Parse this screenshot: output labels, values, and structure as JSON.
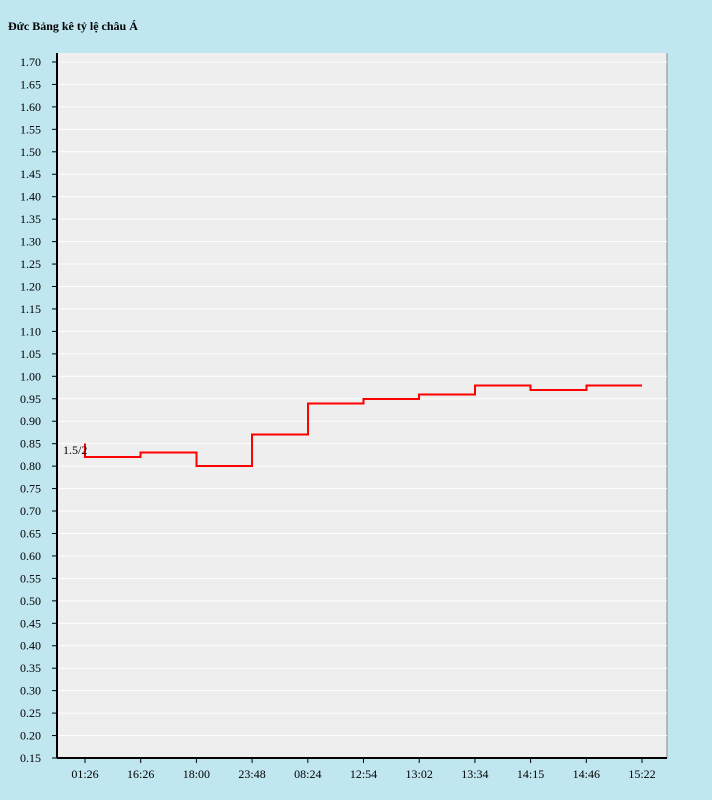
{
  "chart_data": {
    "type": "line",
    "step": true,
    "title": "Đức Bảng kê tỷ lệ châu Á",
    "xlabel": "",
    "ylabel": "",
    "x_ticks": [
      "01:26",
      "16:26",
      "18:00",
      "23:48",
      "08:24",
      "12:54",
      "13:02",
      "13:34",
      "14:15",
      "14:46",
      "15:22"
    ],
    "ylim": [
      0.15,
      1.72
    ],
    "y_ticks": [
      "0.15",
      "0.20",
      "0.25",
      "0.30",
      "0.35",
      "0.40",
      "0.45",
      "0.50",
      "0.55",
      "0.60",
      "0.65",
      "0.70",
      "0.75",
      "0.80",
      "0.85",
      "0.90",
      "0.95",
      "1.00",
      "1.05",
      "1.10",
      "1.15",
      "1.20",
      "1.25",
      "1.30",
      "1.35",
      "1.40",
      "1.45",
      "1.50",
      "1.55",
      "1.60",
      "1.65",
      "1.70"
    ],
    "grid": true,
    "series": [
      {
        "color": "#ff0000",
        "points": [
          {
            "x": "01:26",
            "y": 0.85
          },
          {
            "x": "01:26",
            "y": 0.82
          },
          {
            "x": "16:26",
            "y": 0.83
          },
          {
            "x": "18:00",
            "y": 0.8
          },
          {
            "x": "23:48",
            "y": 0.87
          },
          {
            "x": "08:24",
            "y": 0.94
          },
          {
            "x": "12:54",
            "y": 0.95
          },
          {
            "x": "13:02",
            "y": 0.96
          },
          {
            "x": "13:34",
            "y": 0.98
          },
          {
            "x": "14:15",
            "y": 0.97
          },
          {
            "x": "14:46",
            "y": 0.98
          },
          {
            "x": "15:22",
            "y": 0.98
          }
        ]
      }
    ],
    "annotations": [
      {
        "text": "1.5/2",
        "x": "01:26",
        "y": 0.82
      }
    ]
  },
  "colors": {
    "background": "#c0e6f0",
    "plot_area": "#eeeeee",
    "grid": "#ffffff",
    "line": "#ff0000"
  }
}
